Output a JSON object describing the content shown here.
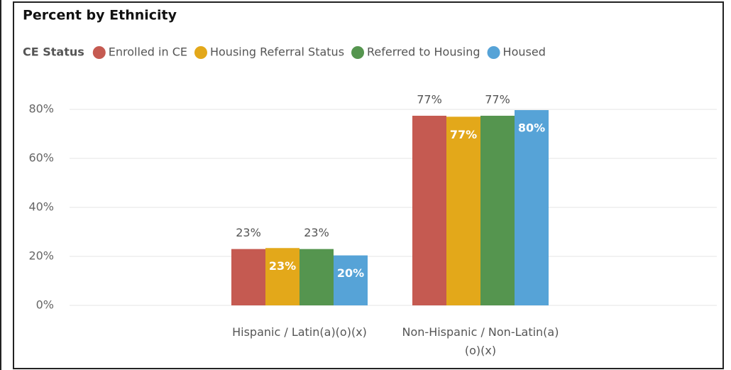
{
  "chart_data": {
    "type": "bar",
    "title": "Percent by Ethnicity",
    "legend_title": "CE Status",
    "legend": "top-left",
    "grid": true,
    "categories": [
      "Hispanic / Latin(a)(o)(x)",
      "Non-Hispanic / Non-Latin(a)(o)(x)"
    ],
    "series": [
      {
        "name": "Enrolled in CE",
        "color": "#c55a51",
        "values": [
          23,
          77.4
        ],
        "value_labels": [
          "23%",
          "77%"
        ]
      },
      {
        "name": "Housing Referral Status",
        "color": "#e3a81a",
        "values": [
          23.4,
          77
        ],
        "value_labels": [
          "23%",
          "77%"
        ]
      },
      {
        "name": "Referred to Housing",
        "color": "#55954f",
        "values": [
          23,
          77.4
        ],
        "value_labels": [
          "23%",
          "77%"
        ]
      },
      {
        "name": "Housed",
        "color": "#56a3d7",
        "values": [
          20.4,
          79.7
        ],
        "value_labels": [
          "20%",
          "80%"
        ]
      }
    ],
    "ylim": [
      0,
      80
    ],
    "yticks": [
      {
        "value": 0,
        "label": "0%"
      },
      {
        "value": 20,
        "label": "20%"
      },
      {
        "value": 40,
        "label": "40%"
      },
      {
        "value": 60,
        "label": "60%"
      },
      {
        "value": 80,
        "label": "80%"
      }
    ]
  }
}
